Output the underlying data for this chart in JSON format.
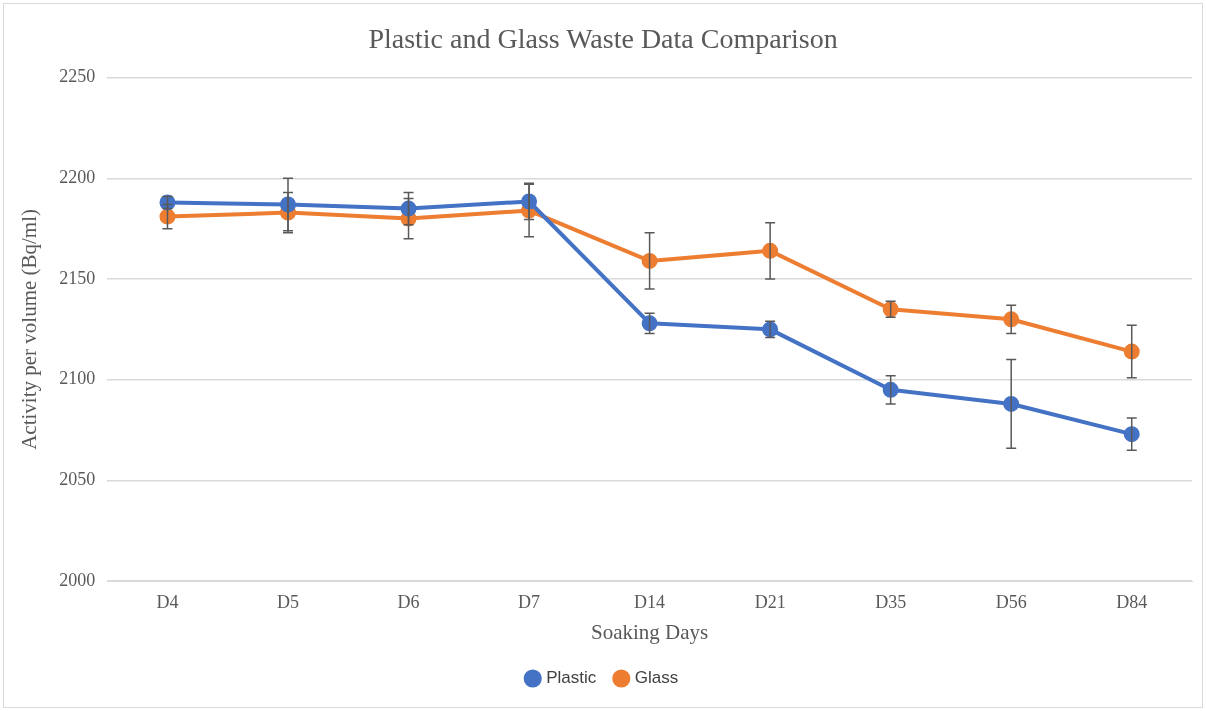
{
  "chart_data": {
    "type": "line",
    "title": "Plastic and Glass Waste Data Comparison",
    "xlabel": "Soaking Days",
    "ylabel": "Activity per volume (Bq/ml)",
    "categories": [
      "D4",
      "D5",
      "D6",
      "D7",
      "D14",
      "D21",
      "D35",
      "D56",
      "D84"
    ],
    "series": [
      {
        "name": "Plastic",
        "color": "#4472c4",
        "values": [
          2188,
          2187,
          2185,
          2188.5,
          2128,
          2125,
          2095,
          2088,
          2073
        ],
        "errors": [
          3,
          13,
          8,
          9,
          5,
          4,
          7,
          22,
          8
        ]
      },
      {
        "name": "Glass",
        "color": "#ed7d31",
        "values": [
          2181,
          2183,
          2180,
          2184,
          2159,
          2164,
          2135,
          2130,
          2114
        ],
        "errors": [
          6,
          10,
          10,
          13,
          14,
          14,
          4,
          7,
          13
        ]
      }
    ],
    "ylim": [
      2000,
      2250
    ],
    "yticks": [
      2000,
      2050,
      2100,
      2150,
      2200,
      2250
    ],
    "grid": "y",
    "legend": "bottom",
    "marker": "circle",
    "line_style": "solid"
  }
}
